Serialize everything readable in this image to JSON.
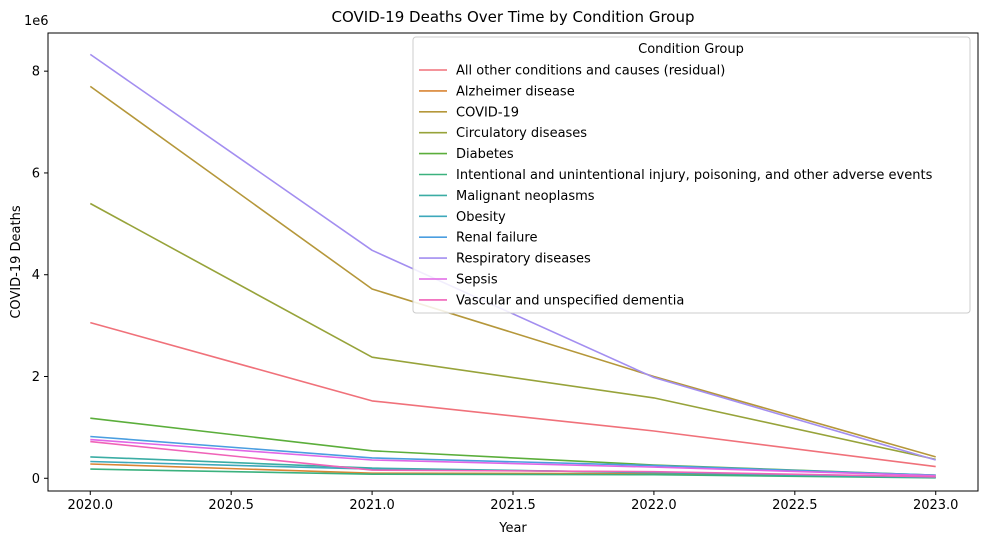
{
  "chart_data": {
    "type": "line",
    "title": "COVID-19 Deaths Over Time by Condition Group",
    "xlabel": "Year",
    "ylabel": "COVID-19 Deaths",
    "y_multiplier_label": "1e6",
    "x": [
      2020,
      2021,
      2022,
      2023
    ],
    "xlim": [
      2019.85,
      2023.15
    ],
    "ylim": [
      -250000,
      8750000
    ],
    "x_ticks": [
      2020.0,
      2020.5,
      2021.0,
      2021.5,
      2022.0,
      2022.5,
      2023.0
    ],
    "x_tick_labels": [
      "2020.0",
      "2020.5",
      "2021.0",
      "2021.5",
      "2022.0",
      "2022.5",
      "2023.0"
    ],
    "y_ticks": [
      0,
      2000000,
      4000000,
      6000000,
      8000000
    ],
    "y_tick_labels": [
      "0",
      "2",
      "4",
      "6",
      "8"
    ],
    "grid": false,
    "legend": {
      "title": "Condition Group",
      "placement": "top-right"
    },
    "series": [
      {
        "name": "All other conditions and causes (residual)",
        "color": "#f0717a",
        "values": [
          3060000,
          1520000,
          930000,
          230000
        ]
      },
      {
        "name": "Alzheimer disease",
        "color": "#d98534",
        "values": [
          280000,
          100000,
          90000,
          20000
        ]
      },
      {
        "name": "COVID-19",
        "color": "#b5973a",
        "values": [
          7700000,
          3720000,
          2000000,
          420000
        ]
      },
      {
        "name": "Circulatory diseases",
        "color": "#97a33a",
        "values": [
          5400000,
          2380000,
          1580000,
          370000
        ]
      },
      {
        "name": "Diabetes",
        "color": "#5bae3b",
        "values": [
          1180000,
          540000,
          260000,
          60000
        ]
      },
      {
        "name": "Intentional and unintentional injury, poisoning, and other adverse events",
        "color": "#3bb17e",
        "values": [
          180000,
          80000,
          70000,
          10000
        ]
      },
      {
        "name": "Malignant neoplasms",
        "color": "#3bada4",
        "values": [
          420000,
          200000,
          110000,
          20000
        ]
      },
      {
        "name": "Obesity",
        "color": "#3da8bb",
        "values": [
          330000,
          180000,
          120000,
          20000
        ]
      },
      {
        "name": "Renal failure",
        "color": "#4a9ee0",
        "values": [
          820000,
          400000,
          250000,
          60000
        ]
      },
      {
        "name": "Respiratory diseases",
        "color": "#a38ef0",
        "values": [
          8330000,
          4480000,
          1980000,
          360000
        ]
      },
      {
        "name": "Sepsis",
        "color": "#e066e6",
        "values": [
          760000,
          360000,
          220000,
          50000
        ]
      },
      {
        "name": "Vascular and unspecified dementia",
        "color": "#f063b8",
        "values": [
          720000,
          160000,
          130000,
          30000
        ]
      }
    ]
  }
}
